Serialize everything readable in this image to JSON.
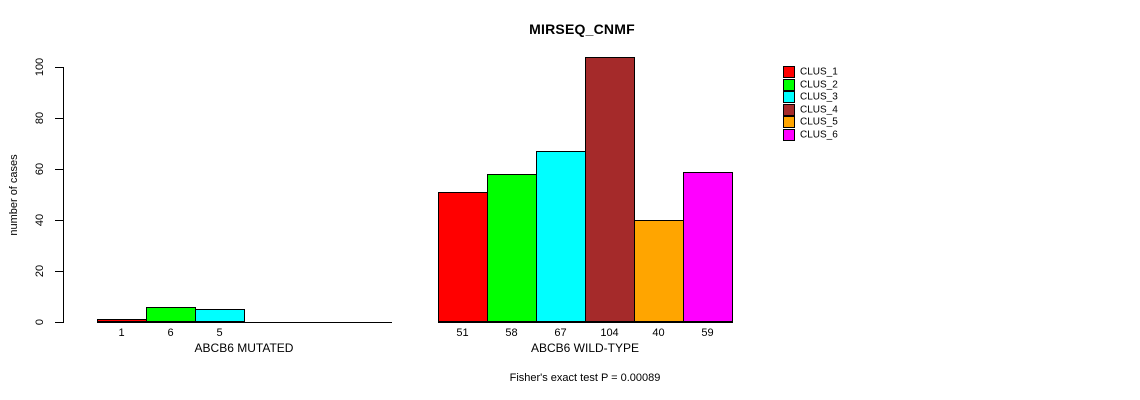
{
  "title": "MIRSEQ_CNMF",
  "chart_data": {
    "type": "bar",
    "title": "MIRSEQ_CNMF",
    "xlabel": "",
    "ylabel": "number of cases",
    "ylim": [
      0,
      100
    ],
    "yticks": [
      0,
      20,
      40,
      60,
      80,
      100
    ],
    "grid": false,
    "legend_position": "right-outside",
    "clusters": [
      {
        "name": "CLUS_1",
        "color": "#FF0000"
      },
      {
        "name": "CLUS_2",
        "color": "#00FF00"
      },
      {
        "name": "CLUS_3",
        "color": "#00FFFF"
      },
      {
        "name": "CLUS_4",
        "color": "#A52A2A"
      },
      {
        "name": "CLUS_5",
        "color": "#FFA500"
      },
      {
        "name": "CLUS_6",
        "color": "#FF00FF"
      }
    ],
    "groups": [
      {
        "label": "ABCB6 MUTATED",
        "values": [
          1,
          6,
          5,
          0,
          0,
          0
        ],
        "bar_labels": [
          "1",
          "6",
          "5",
          "",
          "",
          ""
        ]
      },
      {
        "label": "ABCB6 WILD-TYPE",
        "values": [
          51,
          58,
          67,
          104,
          40,
          59
        ],
        "bar_labels": [
          "51",
          "58",
          "67",
          "104",
          "40",
          "59"
        ]
      }
    ],
    "annotation": "Fisher's exact test P = 0.00089"
  }
}
